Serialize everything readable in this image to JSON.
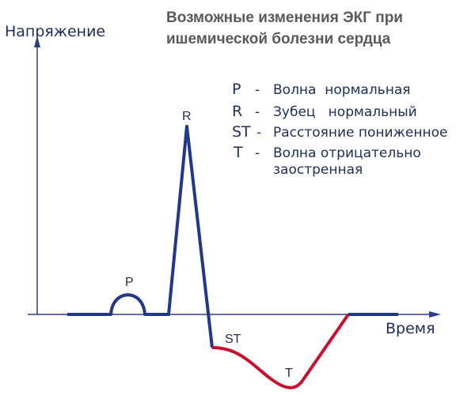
{
  "header": {
    "title_lines": [
      "Возможные изменения ЭКГ при",
      "ишемической болезни сердца"
    ]
  },
  "axes": {
    "y_label": "Напряжение",
    "x_label": "Время"
  },
  "wave_labels": {
    "p": "P",
    "r": "R",
    "st": "ST",
    "t": "T"
  },
  "legend": [
    {
      "symbol": "P",
      "dash": "-",
      "lines": [
        "Волна  нормальная"
      ]
    },
    {
      "symbol": "R",
      "dash": "-",
      "lines": [
        "Зубец   нормальный"
      ]
    },
    {
      "symbol": "ST",
      "dash": "-",
      "lines": [
        "Расстояние пониженное"
      ]
    },
    {
      "symbol": "T",
      "dash": "-",
      "lines": [
        "Волна отрицательно",
        "заостренная"
      ]
    }
  ]
}
